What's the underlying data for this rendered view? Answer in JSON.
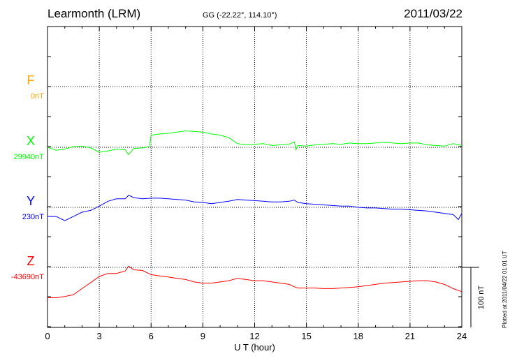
{
  "header": {
    "station": "Learmonth (LRM)",
    "coordinates": "GG (-22.22°, 114.10°)",
    "date": "2011/03/22"
  },
  "footer_note": "Plotted at 2011/04/22 01:01 UT",
  "chart_data": {
    "type": "line",
    "title": "Learmonth (LRM)",
    "xlabel": "U T (hour)",
    "xlim": [
      0,
      24
    ],
    "xticks": [
      "0",
      "3",
      "6",
      "9",
      "12",
      "15",
      "18",
      "21",
      "24"
    ],
    "grid": true,
    "scale_bar": "100 nT",
    "series": [
      {
        "name": "F",
        "baseline_label": "0nT",
        "color": "#ffa500",
        "values": []
      },
      {
        "name": "X",
        "baseline_label": "29940nT",
        "color": "#00ff00",
        "x": [
          0,
          0.5,
          1,
          1.5,
          2,
          2.5,
          3,
          3.5,
          4,
          4.5,
          4.7,
          5,
          5.5,
          5.9,
          6,
          6.5,
          7,
          7.5,
          8,
          8.5,
          9,
          9.5,
          10,
          10.5,
          11,
          11.5,
          12,
          12.5,
          13,
          13.5,
          14,
          14.3,
          14.4,
          14.5,
          15,
          15.5,
          16,
          16.5,
          17,
          17.5,
          18,
          18.5,
          19,
          19.5,
          20,
          20.5,
          21,
          21.5,
          22,
          22.5,
          23,
          23.5,
          24
        ],
        "values": [
          0,
          -5,
          -3,
          1,
          2,
          -1,
          -8,
          -6,
          -3,
          -4,
          -12,
          -2,
          -1,
          1,
          20,
          22,
          23,
          25,
          27,
          26,
          25,
          22,
          20,
          16,
          6,
          4,
          5,
          6,
          3,
          4,
          5,
          9,
          -4,
          3,
          2,
          4,
          5,
          6,
          5,
          7,
          6,
          6,
          7,
          8,
          7,
          6,
          7,
          7,
          4,
          3,
          2,
          6,
          3
        ]
      },
      {
        "name": "Y",
        "baseline_label": "230nT",
        "color": "#0000ff",
        "x": [
          0,
          0.5,
          1,
          1.5,
          2,
          2.5,
          3,
          3.5,
          4,
          4.5,
          4.7,
          5,
          5.5,
          6,
          6.5,
          7,
          7.5,
          8,
          8.5,
          9,
          9.5,
          10,
          10.5,
          11,
          11.5,
          12,
          12.5,
          13,
          13.5,
          14,
          14.3,
          14.5,
          15,
          15.5,
          16,
          16.5,
          17,
          17.5,
          18,
          18.5,
          19,
          19.5,
          20,
          20.5,
          21,
          21.5,
          22,
          22.5,
          23,
          23.5,
          23.8,
          24
        ],
        "values": [
          -15,
          -15,
          -22,
          -15,
          -8,
          -5,
          2,
          10,
          14,
          14,
          20,
          16,
          14,
          15,
          15,
          14,
          13,
          12,
          9,
          8,
          6,
          8,
          10,
          13,
          12,
          11,
          10,
          9,
          9,
          10,
          12,
          8,
          6,
          5,
          4,
          3,
          2,
          2,
          0,
          -1,
          -1,
          -2,
          -3,
          -3,
          -4,
          -5,
          -6,
          -8,
          -10,
          -12,
          -20,
          -10
        ]
      },
      {
        "name": "Z",
        "baseline_label": "-43690nT",
        "color": "#ff0000",
        "x": [
          0,
          0.5,
          1,
          1.5,
          2,
          2.5,
          3,
          3.5,
          4,
          4.5,
          4.7,
          5,
          5.5,
          6,
          6.5,
          7,
          7.5,
          8,
          8.5,
          9,
          9.5,
          10,
          10.5,
          11,
          11.5,
          12,
          12.5,
          13,
          13.5,
          14,
          14.3,
          14.5,
          15,
          15.5,
          16,
          16.5,
          17,
          17.5,
          18,
          18.5,
          19,
          19.5,
          20,
          20.5,
          21,
          21.5,
          22,
          22.5,
          23,
          23.5,
          24
        ],
        "values": [
          -50,
          -50,
          -48,
          -45,
          -35,
          -25,
          -15,
          -10,
          -10,
          -6,
          2,
          -4,
          -5,
          -12,
          -14,
          -16,
          -18,
          -20,
          -24,
          -26,
          -26,
          -24,
          -22,
          -18,
          -20,
          -22,
          -22,
          -24,
          -26,
          -28,
          -32,
          -34,
          -34,
          -34,
          -35,
          -35,
          -34,
          -33,
          -32,
          -30,
          -28,
          -26,
          -25,
          -24,
          -23,
          -22,
          -22,
          -24,
          -28,
          -35,
          -40
        ]
      }
    ]
  }
}
